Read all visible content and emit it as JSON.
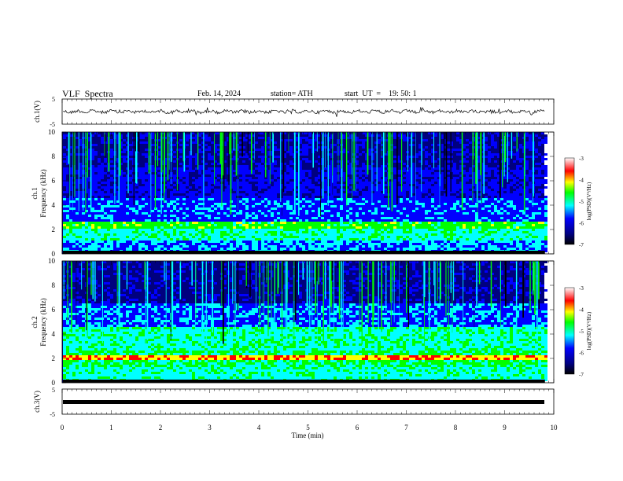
{
  "header": {
    "title": "VLF  Spectra",
    "date": "Feb. 14, 2024",
    "station": "station= ATH",
    "start": "start  UT  =    19: 50: 1"
  },
  "chart_data": [
    {
      "type": "line",
      "name": "ch1-waveform",
      "ylabel": "ch.1(V)",
      "ylim": [
        -5,
        5
      ],
      "yticks": [
        "5",
        "-5"
      ],
      "xlim": [
        0,
        10
      ]
    },
    {
      "type": "heatmap",
      "name": "ch1-spectrogram",
      "ylabel": [
        "ch.1",
        "Frequency  (kHz)"
      ],
      "ylim": [
        0,
        10
      ],
      "yticks": [
        "0",
        "2",
        "4",
        "6",
        "8",
        "10"
      ],
      "xlim": [
        0,
        10
      ],
      "data_end_min": 9.82,
      "colorbar": {
        "label": "log(PSD)(V²/Hz)",
        "range": [
          -7,
          -3
        ],
        "ticks": [
          "-3",
          "-4",
          "-5",
          "-6",
          "-7"
        ]
      }
    },
    {
      "type": "heatmap",
      "name": "ch2-spectrogram",
      "ylabel": [
        "ch.2",
        "Frequency  (kHz)"
      ],
      "ylim": [
        0,
        10
      ],
      "yticks": [
        "0",
        "2",
        "4",
        "6",
        "8",
        "10"
      ],
      "xlim": [
        0,
        10
      ],
      "data_end_min": 9.82,
      "colorbar": {
        "label": "log(PSD)(V²/Hz)",
        "range": [
          -7,
          -3
        ],
        "ticks": [
          "-3",
          "-4",
          "-5",
          "-6",
          "-7"
        ]
      }
    },
    {
      "type": "line",
      "name": "ch3-waveform",
      "ylabel": "ch.3(V)",
      "ylim": [
        -5,
        5
      ],
      "yticks": [
        "5",
        "-5"
      ],
      "xlim": [
        0,
        10
      ],
      "xlabel": "Time  (min)",
      "xticks": [
        "0",
        "1",
        "2",
        "3",
        "4",
        "5",
        "6",
        "7",
        "8",
        "9",
        "10"
      ]
    }
  ],
  "colors": {
    "colormap": [
      "#000000",
      "#00007f",
      "#0000ff",
      "#00ffff",
      "#00ff00",
      "#ffff00",
      "#ff0000",
      "#ffffff"
    ],
    "line": "#000000"
  }
}
